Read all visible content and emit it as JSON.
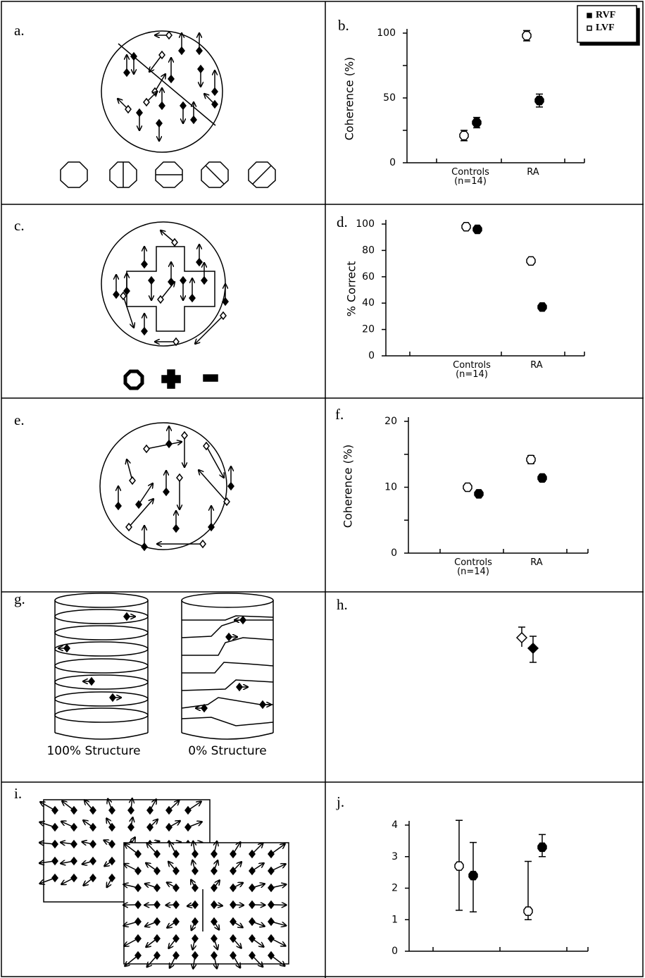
{
  "panels": {
    "a": "a.",
    "c": "c.",
    "e": "e.",
    "g": "g.",
    "h": "h.",
    "i": "i."
  },
  "g_captions": [
    "100% Structure",
    "0% Structure"
  ],
  "chart_data": [
    {
      "type": "scatter",
      "label": "b.",
      "ylabel": "Coherence (%)",
      "categories": [
        "Controls\n(n=14)",
        "RA"
      ],
      "ylim": [
        0,
        100
      ],
      "yticks": [
        0,
        50,
        100
      ],
      "minor_yticks": [
        25,
        75
      ],
      "legend": "upper right",
      "series": [
        {
          "name": "RVF",
          "color": "#000000",
          "marker": "filled",
          "values": [
            31,
            48
          ],
          "errors": [
            4,
            5
          ]
        },
        {
          "name": "LVF",
          "color": "#000000",
          "marker": "open",
          "values": [
            21,
            98
          ],
          "errors": [
            4,
            4
          ]
        }
      ]
    },
    {
      "type": "scatter",
      "label": "d.",
      "ylabel": "% Correct",
      "categories": [
        "Controls\n(n=14)",
        "RA"
      ],
      "ylim": [
        0,
        100
      ],
      "yticks": [
        0,
        20,
        40,
        60,
        80,
        100
      ],
      "series": [
        {
          "color": "#000000",
          "marker": "filled",
          "values": [
            96,
            37
          ]
        },
        {
          "color": "#000000",
          "marker": "open",
          "values": [
            98,
            72
          ]
        }
      ]
    },
    {
      "type": "scatter",
      "label": "f.",
      "ylabel": "Coherence (%)",
      "categories": [
        "Controls\n(n=14)",
        "RA"
      ],
      "ylim": [
        0,
        20
      ],
      "yticks": [
        0,
        10,
        20
      ],
      "minor_yticks": [
        5,
        15
      ],
      "series": [
        {
          "color": "#000000",
          "marker": "filled",
          "values": [
            9.0,
            11.4
          ],
          "errors": [
            0.4,
            0.5
          ]
        },
        {
          "color": "#000000",
          "marker": "open",
          "values": [
            10.0,
            14.2
          ],
          "errors": [
            0.4,
            0.6
          ]
        }
      ]
    },
    {
      "type": "scatter",
      "label": "j.",
      "categories": [
        null,
        null
      ],
      "ylim": [
        0,
        4
      ],
      "yticks": [
        0,
        1,
        2,
        3,
        4
      ],
      "series": [
        {
          "color": "#000000",
          "marker": "filled",
          "values": [
            2.4,
            3.3
          ],
          "lower": [
            1.25,
            3.0
          ],
          "upper": [
            3.45,
            3.7
          ]
        },
        {
          "color": "#000000",
          "marker": "open",
          "values": [
            2.7,
            1.27
          ],
          "lower": [
            1.3,
            1.0
          ],
          "upper": [
            4.15,
            2.85
          ]
        }
      ]
    }
  ]
}
